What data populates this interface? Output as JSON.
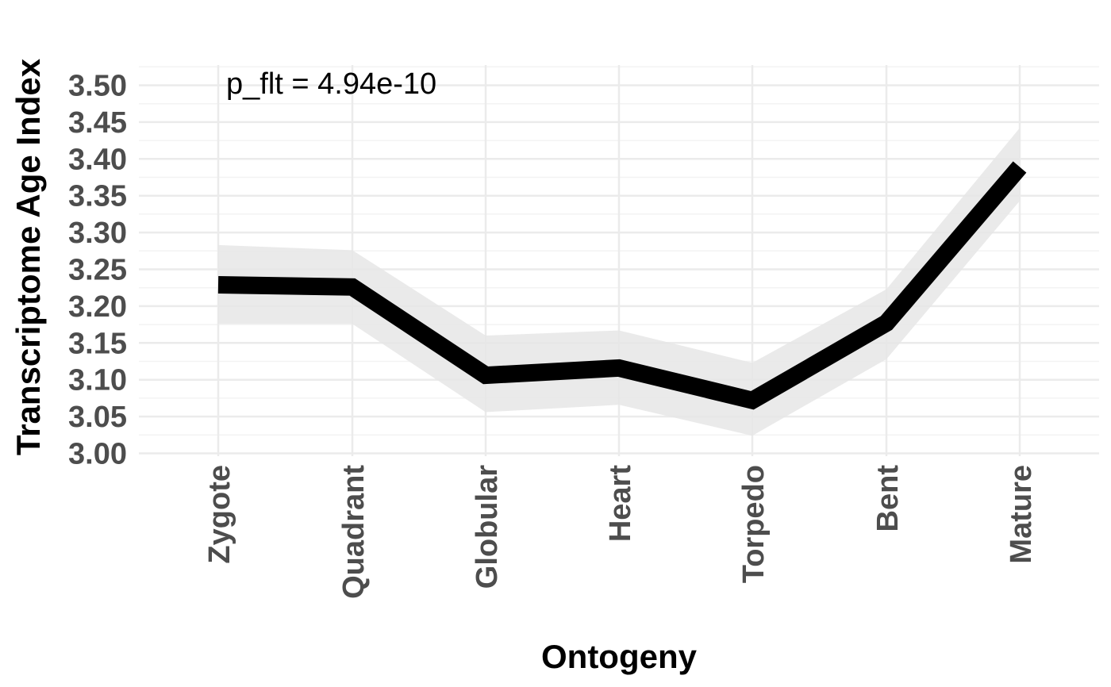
{
  "chart_data": {
    "type": "line",
    "xlabel": "Ontogeny",
    "ylabel": "Transcriptome Age Index",
    "categories": [
      "Zygote",
      "Quadrant",
      "Globular",
      "Heart",
      "Torpedo",
      "Bent",
      "Mature"
    ],
    "series": [
      {
        "values": [
          3.229,
          3.226,
          3.106,
          3.116,
          3.072,
          3.177,
          3.389
        ],
        "lower": [
          3.176,
          3.176,
          3.056,
          3.066,
          3.024,
          3.128,
          3.343
        ],
        "upper": [
          3.283,
          3.276,
          3.16,
          3.167,
          3.123,
          3.223,
          3.442
        ]
      }
    ],
    "ylim": [
      3.0,
      3.5
    ],
    "yticks": [
      "3.00",
      "3.05",
      "3.10",
      "3.15",
      "3.20",
      "3.25",
      "3.30",
      "3.35",
      "3.40",
      "3.45",
      "3.50"
    ],
    "annotation": "p_flt = 4.94e-10",
    "grid": true,
    "legend": "none",
    "colors": {
      "line": "#000000",
      "band": "#e6e6e6",
      "grid_major": "#ebebeb",
      "grid_minor": "#f3f3f3",
      "tick_text": "#4d4d4d"
    }
  }
}
